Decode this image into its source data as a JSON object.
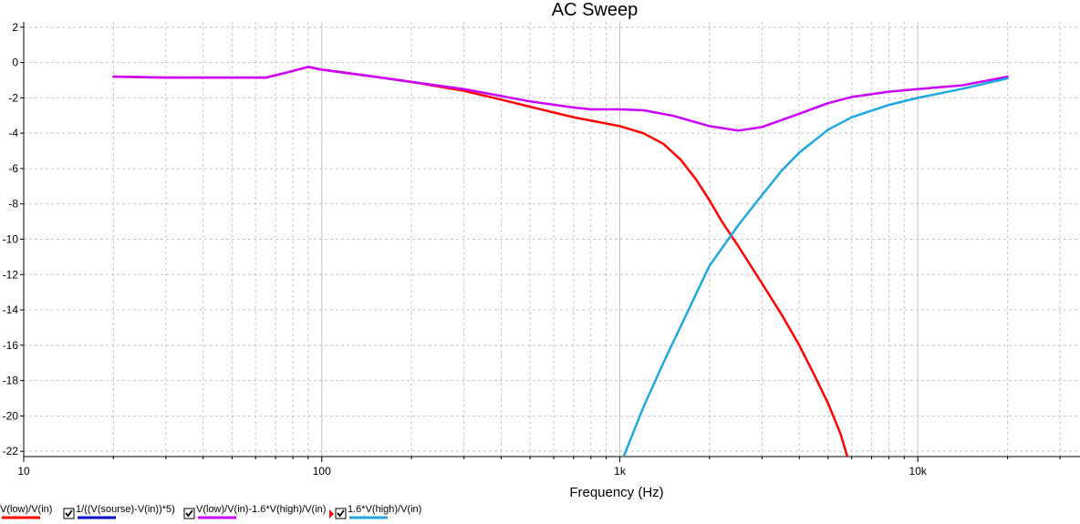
{
  "chart_data": {
    "type": "line",
    "title": "AC Sweep",
    "xlabel": "Frequency (Hz)",
    "ylabel": "",
    "xscale": "log",
    "xlim": [
      10,
      35000
    ],
    "ylim": [
      -22.3,
      2.3
    ],
    "grid": true,
    "legend": "bottom",
    "x_ticks": [
      {
        "value": 10,
        "label": "10"
      },
      {
        "value": 100,
        "label": "100"
      },
      {
        "value": 1000,
        "label": "1k"
      },
      {
        "value": 10000,
        "label": "10k"
      }
    ],
    "y_ticks": [
      {
        "value": 2,
        "label": "2"
      },
      {
        "value": 0,
        "label": "0"
      },
      {
        "value": -2,
        "label": "-2"
      },
      {
        "value": -4,
        "label": "-4"
      },
      {
        "value": -6,
        "label": "-6"
      },
      {
        "value": -8,
        "label": "-8"
      },
      {
        "value": -10,
        "label": "-10"
      },
      {
        "value": -12,
        "label": "-12"
      },
      {
        "value": -14,
        "label": "-14"
      },
      {
        "value": -16,
        "label": "-16"
      },
      {
        "value": -18,
        "label": "-18"
      },
      {
        "value": -20,
        "label": "-20"
      },
      {
        "value": -22,
        "label": "-22"
      }
    ],
    "series": [
      {
        "name": "V(low)/V(in)",
        "color": "#ff0000",
        "checked": false,
        "points": [
          [
            20,
            -0.8
          ],
          [
            30,
            -0.85
          ],
          [
            50,
            -0.85
          ],
          [
            65,
            -0.85
          ],
          [
            75,
            -0.6
          ],
          [
            90,
            -0.25
          ],
          [
            100,
            -0.4
          ],
          [
            150,
            -0.8
          ],
          [
            200,
            -1.1
          ],
          [
            300,
            -1.6
          ],
          [
            400,
            -2.1
          ],
          [
            500,
            -2.5
          ],
          [
            700,
            -3.1
          ],
          [
            1000,
            -3.6
          ],
          [
            1200,
            -4.0
          ],
          [
            1400,
            -4.6
          ],
          [
            1600,
            -5.5
          ],
          [
            1800,
            -6.6
          ],
          [
            2000,
            -7.8
          ],
          [
            2200,
            -9.0
          ],
          [
            2500,
            -10.4
          ],
          [
            3000,
            -12.5
          ],
          [
            3500,
            -14.3
          ],
          [
            4000,
            -16.0
          ],
          [
            4500,
            -17.7
          ],
          [
            5000,
            -19.3
          ],
          [
            5500,
            -21.0
          ],
          [
            5800,
            -22.3
          ]
        ]
      },
      {
        "name": "1/((V(sourse)-V(in))*5)",
        "color": "#0000cc",
        "checked": true,
        "points": []
      },
      {
        "name": "V(low)/V(in)-1.6*V(high)/V(in)",
        "color": "#cc00ff",
        "checked": true,
        "points": [
          [
            20,
            -0.8
          ],
          [
            30,
            -0.85
          ],
          [
            50,
            -0.85
          ],
          [
            65,
            -0.85
          ],
          [
            75,
            -0.6
          ],
          [
            90,
            -0.25
          ],
          [
            100,
            -0.4
          ],
          [
            150,
            -0.8
          ],
          [
            200,
            -1.1
          ],
          [
            300,
            -1.5
          ],
          [
            400,
            -1.9
          ],
          [
            500,
            -2.2
          ],
          [
            700,
            -2.55
          ],
          [
            800,
            -2.65
          ],
          [
            1000,
            -2.65
          ],
          [
            1200,
            -2.7
          ],
          [
            1500,
            -3.0
          ],
          [
            2000,
            -3.6
          ],
          [
            2500,
            -3.85
          ],
          [
            3000,
            -3.65
          ],
          [
            4000,
            -2.9
          ],
          [
            5000,
            -2.3
          ],
          [
            6000,
            -1.95
          ],
          [
            8000,
            -1.65
          ],
          [
            10000,
            -1.5
          ],
          [
            14000,
            -1.3
          ],
          [
            20000,
            -0.8
          ]
        ]
      },
      {
        "name": "1.6*V(high)/V(in)",
        "color": "#1ea8e0",
        "checked": true,
        "points": [
          [
            1030,
            -22.3
          ],
          [
            1200,
            -19.5
          ],
          [
            1400,
            -17.0
          ],
          [
            1700,
            -14.0
          ],
          [
            2000,
            -11.5
          ],
          [
            2500,
            -9.2
          ],
          [
            3000,
            -7.5
          ],
          [
            3500,
            -6.1
          ],
          [
            4000,
            -5.1
          ],
          [
            5000,
            -3.8
          ],
          [
            6000,
            -3.1
          ],
          [
            8000,
            -2.4
          ],
          [
            10000,
            -2.0
          ],
          [
            14000,
            -1.5
          ],
          [
            20000,
            -0.9
          ]
        ]
      }
    ]
  }
}
